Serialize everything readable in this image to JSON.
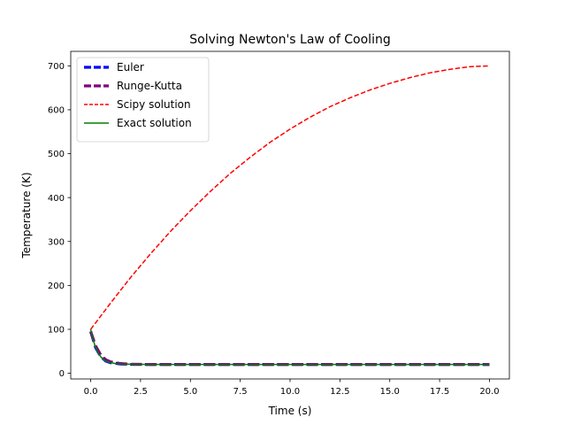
{
  "chart_data": {
    "type": "line",
    "title": "Solving Newton's Law of Cooling",
    "xlabel": "Time (s)",
    "ylabel": "Temperature (K)",
    "xlim": [
      -1.0,
      21.0
    ],
    "ylim": [
      -13.0,
      733.0
    ],
    "xticks": [
      0.0,
      2.5,
      5.0,
      7.5,
      10.0,
      12.5,
      15.0,
      17.5,
      20.0
    ],
    "xtick_labels": [
      "0.0",
      "2.5",
      "5.0",
      "7.5",
      "10.0",
      "12.5",
      "15.0",
      "17.5",
      "20.0"
    ],
    "yticks": [
      0,
      100,
      200,
      300,
      400,
      500,
      600,
      700
    ],
    "ytick_labels": [
      "0",
      "100",
      "200",
      "300",
      "400",
      "500",
      "600",
      "700"
    ],
    "grid": false,
    "legend_position": "upper-left",
    "series": [
      {
        "name": "Euler",
        "color": "#0000ff",
        "style": "dashed-thick",
        "x": [
          0,
          0.25,
          0.5,
          0.75,
          1.0,
          1.5,
          2,
          3,
          4,
          5,
          6,
          7,
          8,
          9,
          10,
          11,
          12,
          13,
          14,
          15,
          16,
          17,
          18,
          19,
          20
        ],
        "y": [
          95,
          58,
          38,
          28,
          24,
          21,
          20.3,
          20,
          20,
          20,
          20,
          20,
          20,
          20,
          20,
          20,
          20,
          20,
          20,
          20,
          20,
          20,
          20,
          20,
          20
        ]
      },
      {
        "name": "Runge-Kutta",
        "color": "#800080",
        "style": "dashed-thick",
        "x": [
          0,
          0.25,
          0.5,
          0.75,
          1.0,
          1.5,
          2,
          3,
          4,
          5,
          6,
          7,
          8,
          9,
          10,
          11,
          12,
          13,
          14,
          15,
          16,
          17,
          18,
          19,
          20
        ],
        "y": [
          95,
          62,
          42,
          31,
          26,
          22,
          20.5,
          20,
          20,
          20,
          20,
          20,
          20,
          20,
          20,
          20,
          20,
          20,
          20,
          20,
          20,
          20,
          20,
          20,
          20
        ]
      },
      {
        "name": "Scipy solution",
        "color": "#ff0000",
        "style": "dashed",
        "x": [
          0,
          1,
          2,
          3,
          4,
          5,
          6,
          7,
          8,
          9,
          10,
          11,
          12,
          13,
          14,
          15,
          16,
          17,
          18,
          19,
          20
        ],
        "y": [
          100,
          160,
          218,
          272,
          323,
          370,
          414,
          455,
          492,
          526,
          556,
          583,
          607,
          627,
          645,
          660,
          673,
          684,
          692,
          698,
          700
        ]
      },
      {
        "name": "Exact solution",
        "color": "#008000",
        "style": "solid",
        "x": [
          0,
          0.1,
          0.2,
          0.3,
          0.4,
          0.5,
          0.6,
          0.7,
          0.8,
          1.0,
          1.25,
          1.5,
          2,
          3,
          4,
          5,
          6,
          7,
          8,
          9,
          10,
          11,
          12,
          13,
          14,
          15,
          16,
          17,
          18,
          19,
          20
        ],
        "y": [
          100,
          80,
          65,
          53,
          44,
          38,
          33,
          29,
          27,
          24,
          22,
          21,
          20.4,
          20,
          20,
          20,
          20,
          20,
          20,
          20,
          20,
          20,
          20,
          20,
          20,
          20,
          20,
          20,
          20,
          20,
          20
        ]
      }
    ]
  }
}
